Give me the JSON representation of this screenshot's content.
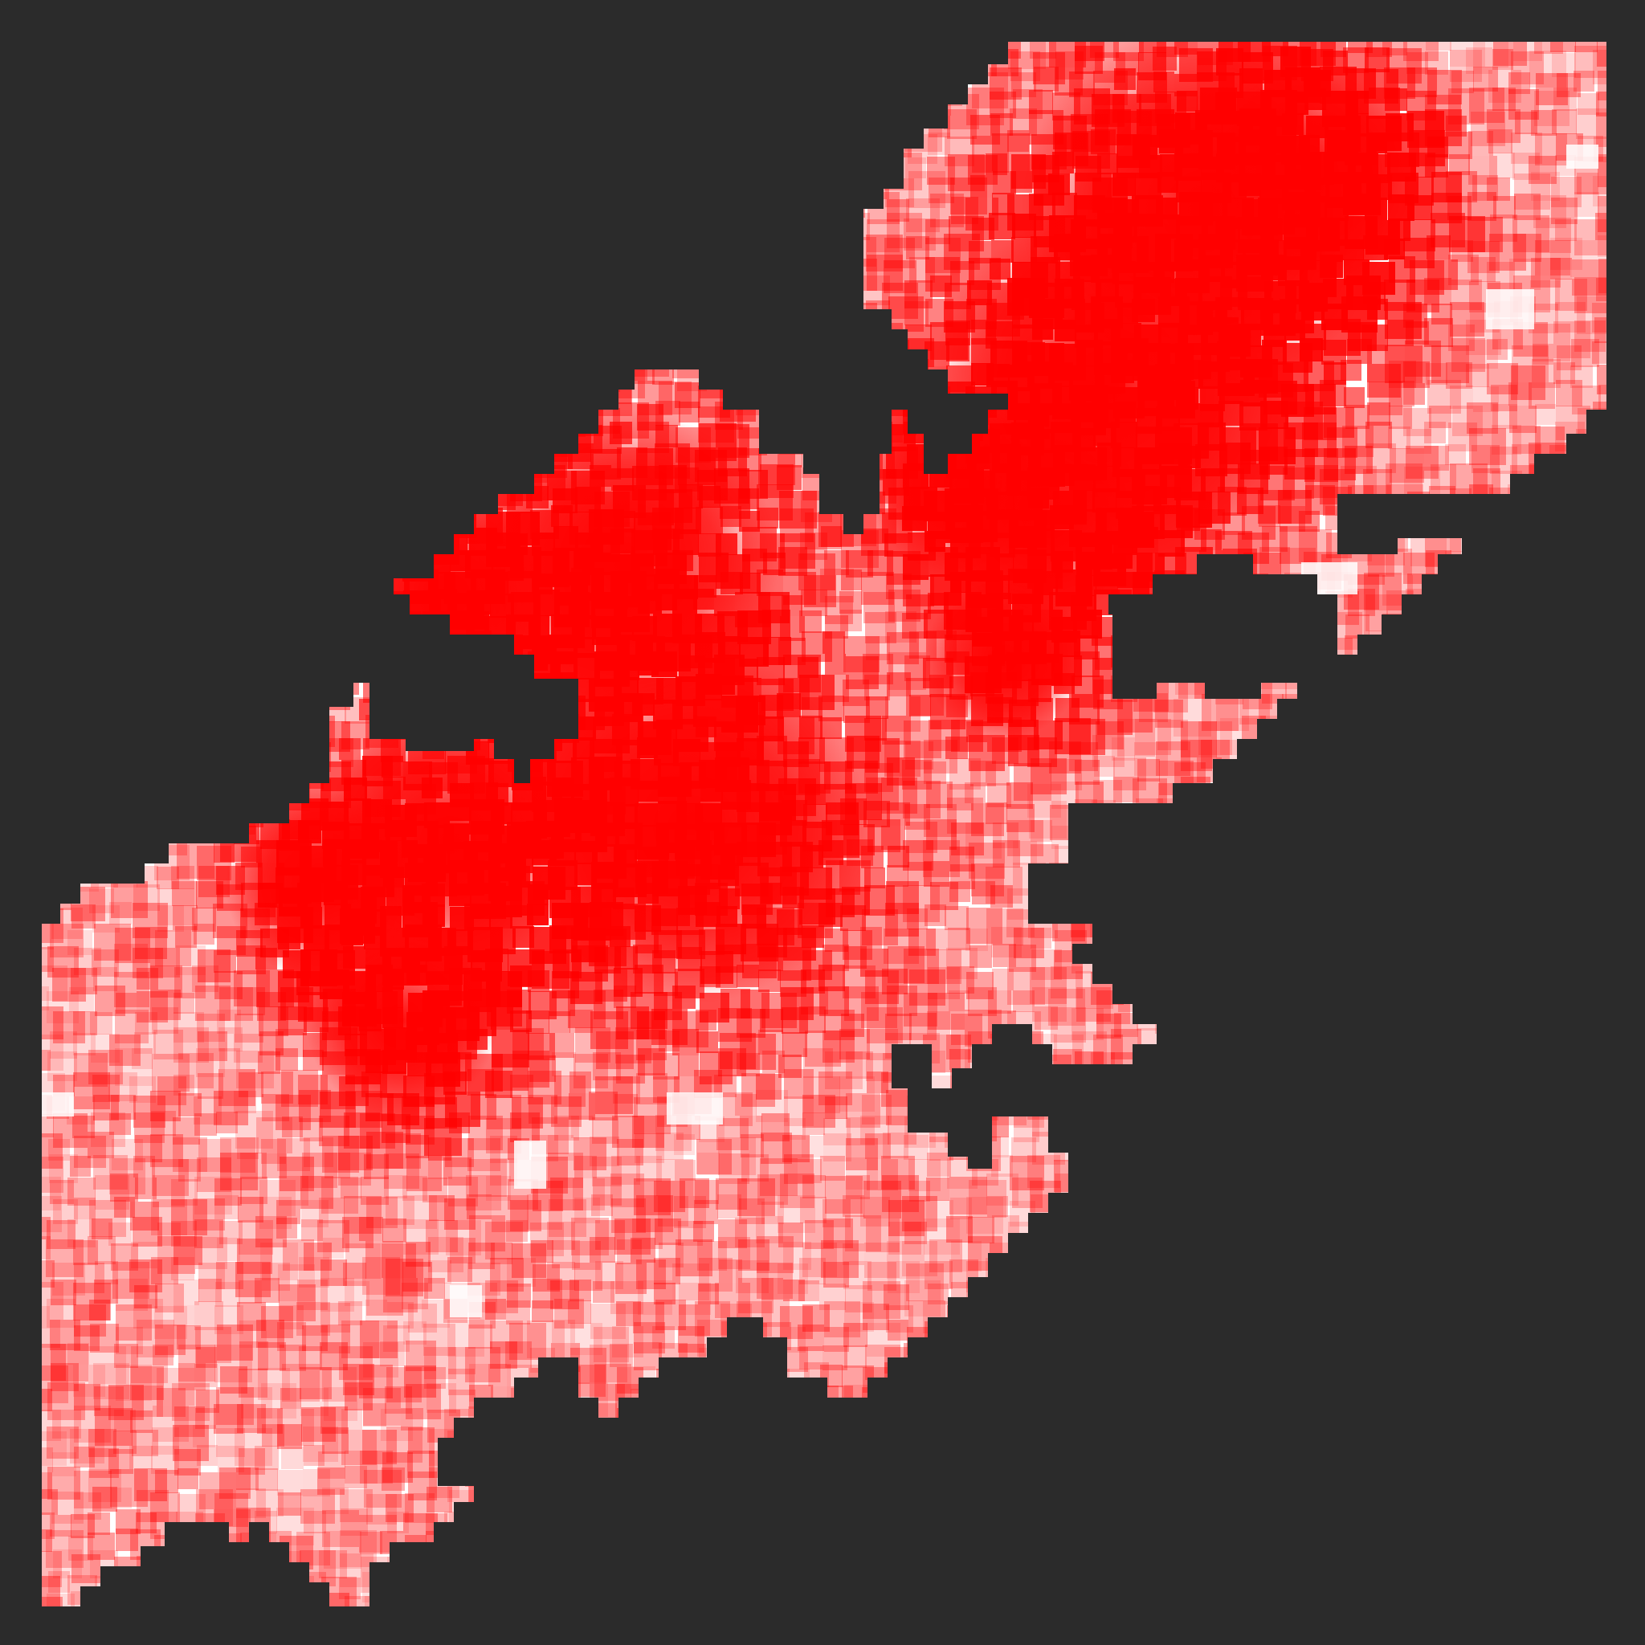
{
  "map": {
    "background_color": "#2b2b2b",
    "low_color": "#ffffff",
    "high_color": "#ff0000",
    "style": "blocky density heatmap of a region",
    "legend": null
  }
}
